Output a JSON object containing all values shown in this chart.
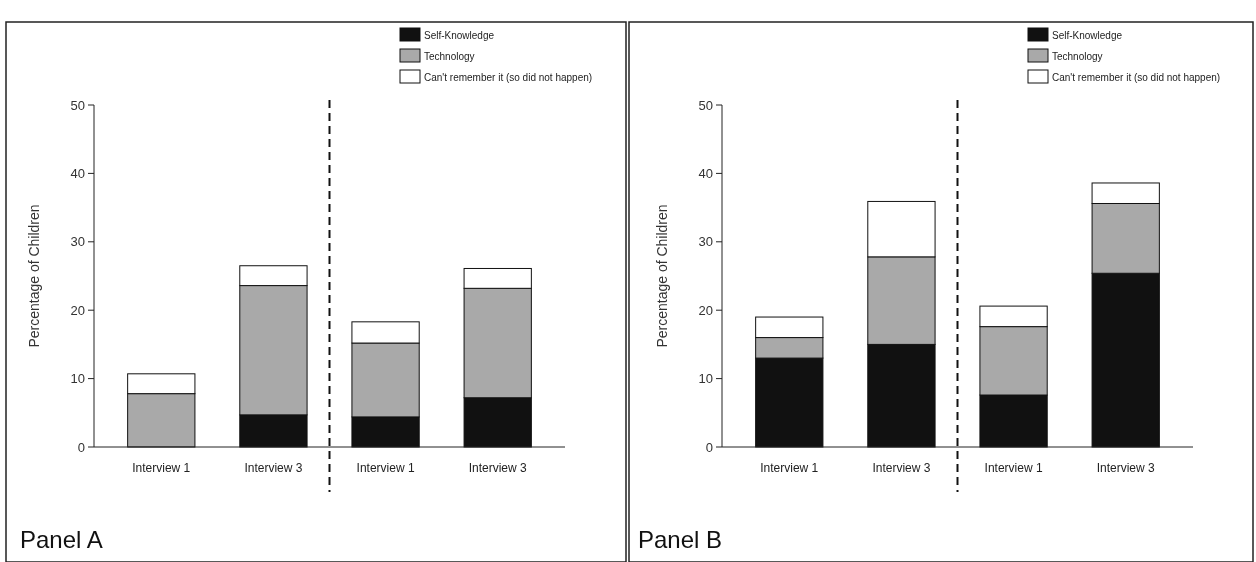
{
  "chart_data": [
    {
      "type": "bar",
      "title": "Panel A",
      "ylabel": "Percentage of Children",
      "categories": [
        "Interview 1",
        "Interview 3",
        "Interview 1",
        "Interview 3"
      ],
      "stacked": true,
      "ylim": [
        0,
        50
      ],
      "yticks": [
        0,
        10,
        20,
        30,
        40,
        50
      ],
      "legend": "top right",
      "series": [
        {
          "name": "Self-Knowledge",
          "color": "#111111",
          "values": [
            0,
            4.7,
            4.4,
            7.2
          ]
        },
        {
          "name": "Technology",
          "color": "#a9a9a9",
          "values": [
            7.8,
            18.9,
            10.8,
            16.0
          ]
        },
        {
          "name": "Can't remember it (so did not happen)",
          "color": "#ffffff",
          "values": [
            2.9,
            2.9,
            3.1,
            2.9
          ]
        }
      ]
    },
    {
      "type": "bar",
      "title": "Panel B",
      "ylabel": "Percentage of Children",
      "categories": [
        "Interview 1",
        "Interview 3",
        "Interview 1",
        "Interview 3"
      ],
      "stacked": true,
      "ylim": [
        0,
        50
      ],
      "yticks": [
        0,
        10,
        20,
        30,
        40,
        50
      ],
      "legend": "top right",
      "series": [
        {
          "name": "Self-Knowledge",
          "color": "#111111",
          "values": [
            13.0,
            15.0,
            7.6,
            25.4
          ]
        },
        {
          "name": "Technology",
          "color": "#a9a9a9",
          "values": [
            3.0,
            12.8,
            10.0,
            10.2
          ]
        },
        {
          "name": "Can't remember it (so did not happen)",
          "color": "#ffffff",
          "values": [
            3.0,
            8.1,
            3.0,
            3.0
          ]
        }
      ]
    }
  ]
}
